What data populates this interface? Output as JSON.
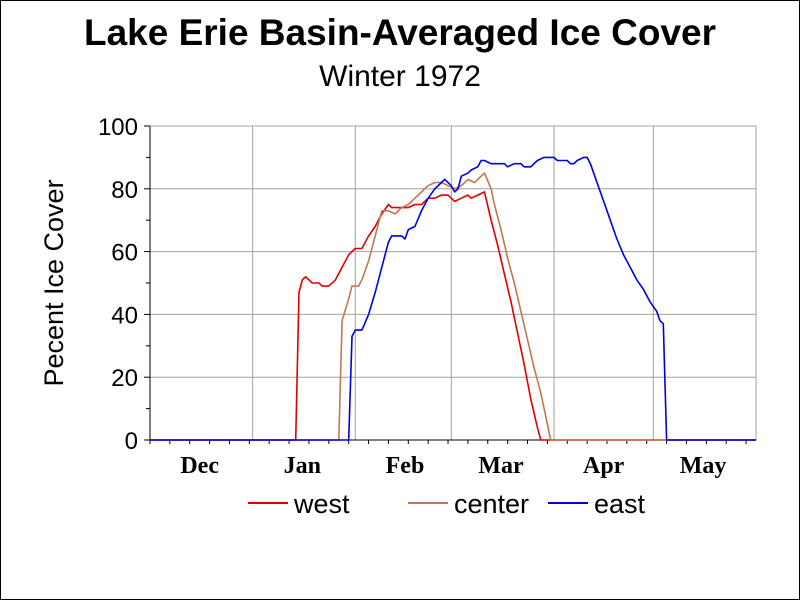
{
  "chart_data": {
    "type": "line",
    "title": "Lake Erie Basin-Averaged Ice Cover",
    "subtitle": "Winter 1972",
    "ylabel": "Pecent Ice Cover",
    "xlabel": "",
    "ylim": [
      0,
      100
    ],
    "yticks": [
      0,
      20,
      40,
      60,
      80,
      100
    ],
    "x_unit": "days since Dec 1",
    "xlim": [
      0,
      183
    ],
    "categories": [
      "Dec",
      "Jan",
      "Feb",
      "Mar",
      "Apr",
      "May"
    ],
    "category_positions": [
      15,
      46,
      77,
      106,
      137,
      167
    ],
    "grid": true,
    "legend_position": "bottom",
    "series": [
      {
        "name": "west",
        "color": "#e00000",
        "points": [
          [
            0,
            0
          ],
          [
            44,
            0
          ],
          [
            45,
            47
          ],
          [
            46,
            51
          ],
          [
            47,
            52
          ],
          [
            48,
            51
          ],
          [
            49,
            50
          ],
          [
            51,
            50
          ],
          [
            52,
            49
          ],
          [
            54,
            49
          ],
          [
            56,
            51
          ],
          [
            58,
            55
          ],
          [
            60,
            59
          ],
          [
            62,
            61
          ],
          [
            64,
            61
          ],
          [
            66,
            65
          ],
          [
            68,
            68
          ],
          [
            70,
            72
          ],
          [
            72,
            75
          ],
          [
            73,
            74
          ],
          [
            75,
            74
          ],
          [
            78,
            74
          ],
          [
            80,
            75
          ],
          [
            82,
            75
          ],
          [
            84,
            77
          ],
          [
            86,
            77
          ],
          [
            88,
            78
          ],
          [
            90,
            78
          ],
          [
            92,
            76
          ],
          [
            94,
            77
          ],
          [
            96,
            78
          ],
          [
            97,
            77
          ],
          [
            99,
            78
          ],
          [
            101,
            79
          ],
          [
            103,
            70
          ],
          [
            105,
            62
          ],
          [
            107,
            53
          ],
          [
            109,
            44
          ],
          [
            111,
            34
          ],
          [
            113,
            24
          ],
          [
            115,
            13
          ],
          [
            117,
            4
          ],
          [
            118,
            0
          ],
          [
            183,
            0
          ]
        ]
      },
      {
        "name": "center",
        "color": "#c07850",
        "points": [
          [
            0,
            0
          ],
          [
            57,
            0
          ],
          [
            58,
            38
          ],
          [
            60,
            45
          ],
          [
            61,
            49
          ],
          [
            63,
            49
          ],
          [
            64,
            51
          ],
          [
            66,
            57
          ],
          [
            68,
            65
          ],
          [
            70,
            73
          ],
          [
            72,
            73
          ],
          [
            74,
            72
          ],
          [
            76,
            74
          ],
          [
            78,
            75
          ],
          [
            80,
            77
          ],
          [
            82,
            79
          ],
          [
            84,
            81
          ],
          [
            86,
            82
          ],
          [
            88,
            82
          ],
          [
            90,
            81
          ],
          [
            92,
            80
          ],
          [
            94,
            81
          ],
          [
            96,
            83
          ],
          [
            98,
            82
          ],
          [
            100,
            84
          ],
          [
            101,
            85
          ],
          [
            103,
            80
          ],
          [
            104,
            75
          ],
          [
            106,
            67
          ],
          [
            108,
            58
          ],
          [
            110,
            50
          ],
          [
            112,
            41
          ],
          [
            114,
            32
          ],
          [
            116,
            23
          ],
          [
            118,
            15
          ],
          [
            119,
            10
          ],
          [
            120,
            5
          ],
          [
            121,
            0
          ],
          [
            183,
            0
          ]
        ]
      },
      {
        "name": "east",
        "color": "#0000e0",
        "points": [
          [
            0,
            0
          ],
          [
            60,
            0
          ],
          [
            61,
            33
          ],
          [
            62,
            35
          ],
          [
            64,
            35
          ],
          [
            66,
            40
          ],
          [
            68,
            47
          ],
          [
            70,
            55
          ],
          [
            72,
            63
          ],
          [
            73,
            65
          ],
          [
            76,
            65
          ],
          [
            77,
            64
          ],
          [
            78,
            67
          ],
          [
            80,
            68
          ],
          [
            82,
            73
          ],
          [
            84,
            77
          ],
          [
            86,
            80
          ],
          [
            88,
            82
          ],
          [
            89,
            83
          ],
          [
            91,
            81
          ],
          [
            92,
            79
          ],
          [
            93,
            80
          ],
          [
            94,
            84
          ],
          [
            96,
            85
          ],
          [
            97,
            86
          ],
          [
            99,
            87
          ],
          [
            100,
            89
          ],
          [
            101,
            89
          ],
          [
            103,
            88
          ],
          [
            107,
            88
          ],
          [
            108,
            87
          ],
          [
            110,
            88
          ],
          [
            112,
            88
          ],
          [
            113,
            87
          ],
          [
            115,
            87
          ],
          [
            117,
            89
          ],
          [
            119,
            90
          ],
          [
            122,
            90
          ],
          [
            123,
            89
          ],
          [
            126,
            89
          ],
          [
            127,
            88
          ],
          [
            128,
            88
          ],
          [
            129,
            89
          ],
          [
            131,
            90
          ],
          [
            132,
            90
          ],
          [
            133,
            88
          ],
          [
            135,
            82
          ],
          [
            137,
            76
          ],
          [
            139,
            70
          ],
          [
            141,
            64
          ],
          [
            143,
            59
          ],
          [
            145,
            55
          ],
          [
            147,
            51
          ],
          [
            149,
            48
          ],
          [
            151,
            44
          ],
          [
            153,
            41
          ],
          [
            154,
            38
          ],
          [
            155,
            37
          ],
          [
            156,
            0
          ],
          [
            183,
            0
          ]
        ]
      }
    ]
  }
}
